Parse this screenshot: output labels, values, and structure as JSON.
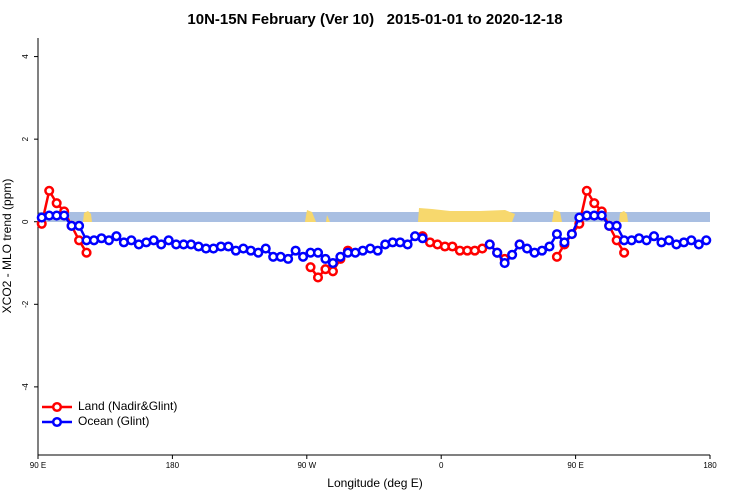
{
  "chart_data": {
    "type": "line",
    "title": "10N-15N February (Ver 10)   2015-01-01 to 2020-12-18",
    "x_label": "Longitude (deg E)",
    "y_label": "XCO2 - MLO trend (ppm)",
    "xlim": [
      90,
      540
    ],
    "xticks": [
      {
        "value": 90,
        "label": "90 E"
      },
      180,
      {
        "value": 270,
        "label": "90 W"
      },
      {
        "value": 360,
        "label": "0"
      },
      {
        "value": 450,
        "label": "90 E"
      },
      {
        "value": 540,
        "label": "180"
      }
    ],
    "ylim": [
      -5.65,
      4.45
    ],
    "yticks": [
      -4,
      -2,
      0,
      2,
      4
    ],
    "legend": "bottom-left",
    "x": [
      92.5,
      97.5,
      102.5,
      107.5,
      112.5,
      117.5,
      122.5,
      127.5,
      132.5,
      137.5,
      142.5,
      147.5,
      152.5,
      157.5,
      162.5,
      167.5,
      172.5,
      177.5,
      182.5,
      187.5,
      192.5,
      197.5,
      202.5,
      207.5,
      212.5,
      217.5,
      222.5,
      227.5,
      232.5,
      237.5,
      242.5,
      247.5,
      252.5,
      257.5,
      262.5,
      267.5,
      272.5,
      277.5,
      282.5,
      287.5,
      292.5,
      297.5,
      302.5,
      307.5,
      312.5,
      317.5,
      322.5,
      327.5,
      332.5,
      337.5,
      342.5,
      347.5,
      352.5,
      357.5,
      362.5,
      367.5,
      372.5,
      377.5,
      382.5,
      387.5,
      392.5,
      397.5,
      402.5,
      407.5,
      412.5,
      417.5,
      422.5,
      427.5,
      432.5,
      437.5,
      442.5,
      447.5,
      452.5,
      457.5,
      462.5,
      467.5,
      472.5,
      477.5,
      482.5,
      487.5,
      492.5,
      497.5,
      502.5,
      507.5,
      512.5,
      517.5,
      522.5,
      527.5,
      532.5,
      537.5
    ],
    "series": [
      {
        "name": "Land (Nadir&Glint)",
        "color": "#ff0000",
        "values": [
          -0.05,
          0.75,
          0.45,
          0.25,
          -0.1,
          -0.45,
          -0.75,
          null,
          null,
          null,
          null,
          null,
          null,
          null,
          null,
          null,
          null,
          null,
          null,
          null,
          null,
          null,
          null,
          null,
          null,
          null,
          null,
          null,
          null,
          null,
          null,
          null,
          null,
          null,
          null,
          null,
          -1.1,
          -1.35,
          -1.15,
          -1.2,
          -0.9,
          -0.7,
          null,
          null,
          null,
          null,
          null,
          null,
          null,
          null,
          null,
          -0.35,
          -0.5,
          -0.55,
          -0.6,
          -0.6,
          -0.7,
          -0.7,
          -0.7,
          -0.65,
          -0.55,
          -0.75,
          -0.9,
          null,
          -0.55,
          null,
          null,
          null,
          null,
          -0.85,
          -0.55,
          -0.3,
          -0.05,
          0.75,
          0.45,
          0.25,
          -0.1,
          -0.45,
          -0.75,
          null,
          null,
          null,
          null,
          null,
          null,
          null,
          null,
          null,
          null,
          null
        ]
      },
      {
        "name": "Ocean (Glint)",
        "color": "#0000ff",
        "values": [
          0.1,
          0.15,
          0.15,
          0.15,
          -0.1,
          -0.1,
          -0.45,
          -0.45,
          -0.4,
          -0.45,
          -0.35,
          -0.5,
          -0.45,
          -0.55,
          -0.5,
          -0.45,
          -0.55,
          -0.45,
          -0.55,
          -0.55,
          -0.55,
          -0.6,
          -0.65,
          -0.65,
          -0.6,
          -0.6,
          -0.7,
          -0.65,
          -0.7,
          -0.75,
          -0.65,
          -0.85,
          -0.85,
          -0.9,
          -0.7,
          -0.85,
          -0.75,
          -0.75,
          -0.9,
          -1.0,
          -0.85,
          -0.75,
          -0.75,
          -0.7,
          -0.65,
          -0.7,
          -0.55,
          -0.5,
          -0.5,
          -0.55,
          -0.35,
          -0.4,
          null,
          null,
          null,
          null,
          null,
          null,
          null,
          null,
          -0.55,
          -0.75,
          -1.0,
          -0.8,
          -0.55,
          -0.65,
          -0.75,
          -0.7,
          -0.6,
          -0.3,
          -0.5,
          -0.3,
          0.1,
          0.15,
          0.15,
          0.15,
          -0.1,
          -0.1,
          -0.45,
          -0.45,
          -0.4,
          -0.45,
          -0.35,
          -0.5,
          -0.45,
          -0.55,
          -0.5,
          -0.45,
          -0.55,
          -0.45
        ]
      }
    ]
  }
}
